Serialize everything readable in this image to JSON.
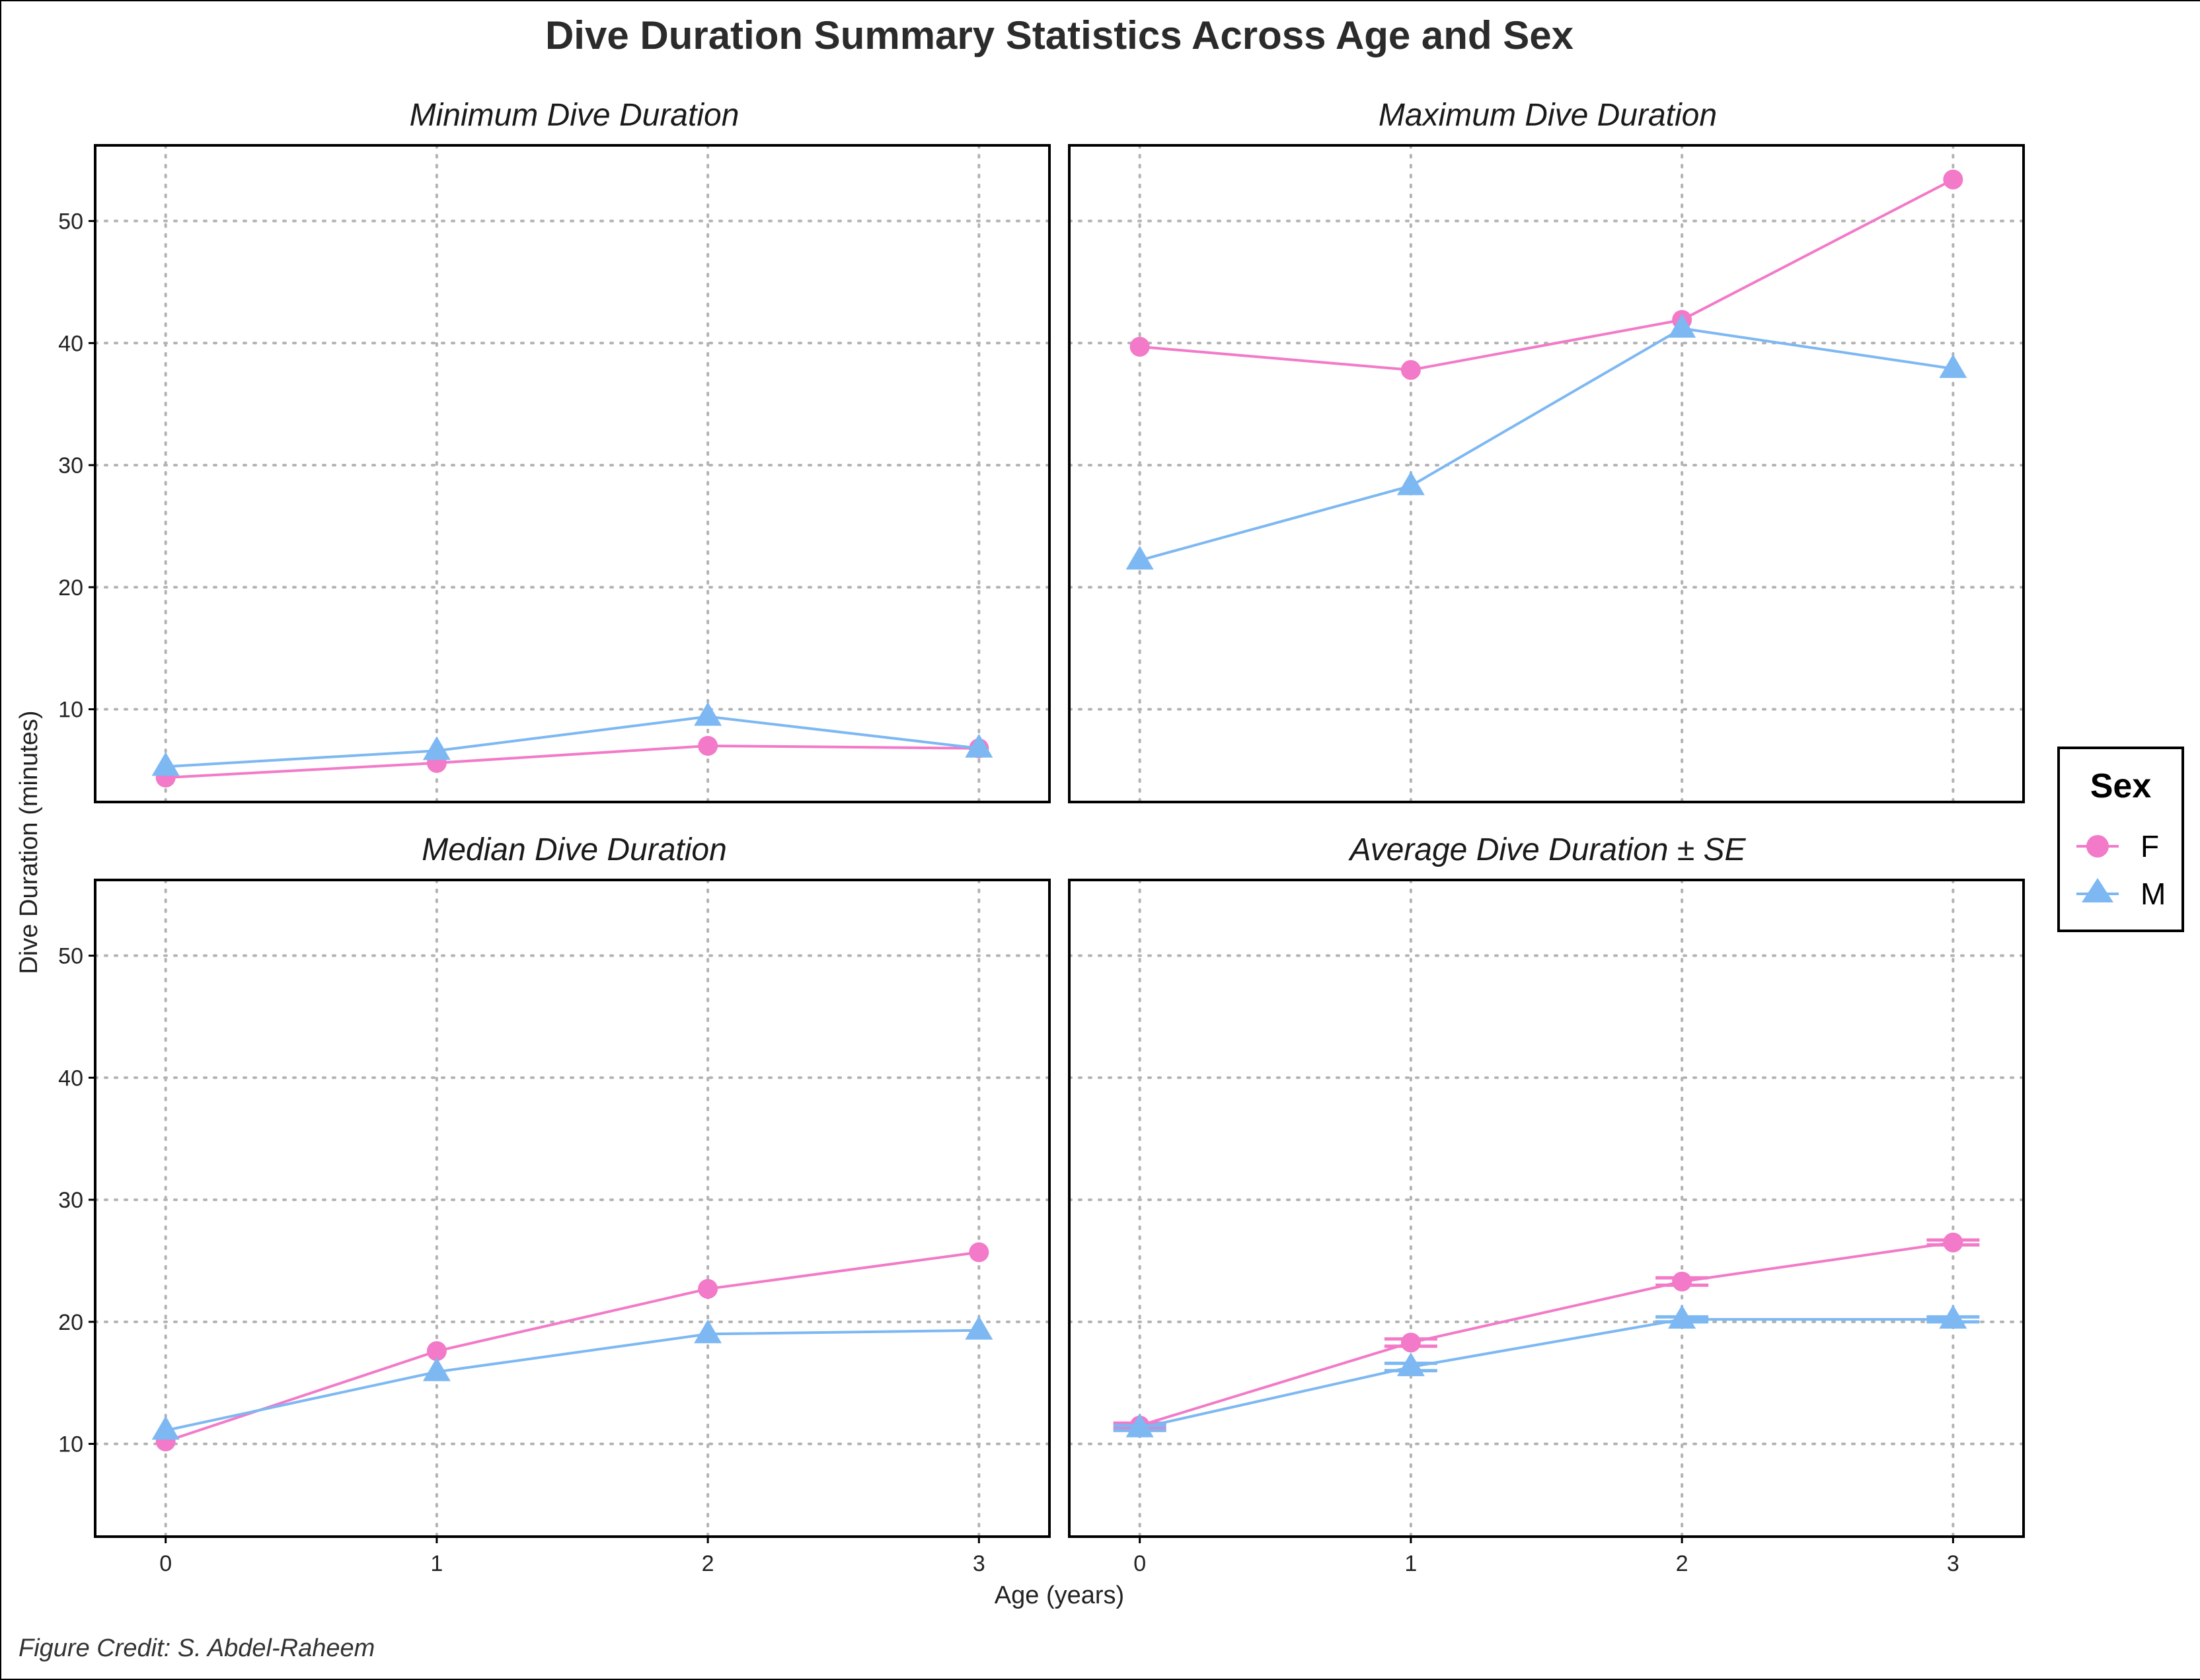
{
  "chart_data": {
    "type": "line",
    "title": "Dive Duration Summary Statistics Across Age and Sex",
    "xlabel": "Age (years)",
    "ylabel": "Dive Duration (minutes)",
    "credit": "Figure Credit: S. Abdel-Raheem",
    "x": [
      0,
      1,
      2,
      3
    ],
    "x_tick_labels": [
      "0",
      "1",
      "2",
      "3"
    ],
    "xlim": [
      -0.26,
      3.26
    ],
    "ylim": [
      2.4,
      56.2
    ],
    "y_ticks": [
      10,
      20,
      30,
      40,
      50
    ],
    "y_tick_labels": [
      "10",
      "20",
      "30",
      "40",
      "50"
    ],
    "grid": "dotted major gridlines",
    "colors": {
      "F": "#f27ac8",
      "M": "#7db8f2"
    },
    "legend": {
      "title": "Sex",
      "position": "right",
      "entries": [
        "F",
        "M"
      ]
    },
    "panels": [
      {
        "title": "Minimum Dive Duration",
        "series": [
          {
            "name": "F",
            "marker": "circle",
            "values": [
              4.4,
              5.6,
              7.0,
              6.8
            ]
          },
          {
            "name": "M",
            "marker": "triangle",
            "values": [
              5.3,
              6.6,
              9.4,
              6.8
            ]
          }
        ]
      },
      {
        "title": "Maximum Dive Duration",
        "series": [
          {
            "name": "F",
            "marker": "circle",
            "values": [
              39.7,
              37.8,
              41.9,
              53.4
            ]
          },
          {
            "name": "M",
            "marker": "triangle",
            "values": [
              22.2,
              28.3,
              41.2,
              37.9
            ]
          }
        ]
      },
      {
        "title": "Median Dive Duration",
        "series": [
          {
            "name": "F",
            "marker": "circle",
            "values": [
              10.2,
              17.6,
              22.7,
              25.7
            ]
          },
          {
            "name": "M",
            "marker": "triangle",
            "values": [
              11.1,
              15.9,
              19.0,
              19.3
            ]
          }
        ]
      },
      {
        "title": "Average Dive Duration ± SE",
        "series": [
          {
            "name": "F",
            "marker": "circle",
            "values": [
              11.5,
              18.3,
              23.3,
              26.5
            ],
            "se": [
              0.2,
              0.3,
              0.3,
              0.2
            ]
          },
          {
            "name": "M",
            "marker": "triangle",
            "values": [
              11.3,
              16.3,
              20.2,
              20.2
            ],
            "se": [
              0.2,
              0.3,
              0.2,
              0.2
            ]
          }
        ]
      }
    ]
  }
}
